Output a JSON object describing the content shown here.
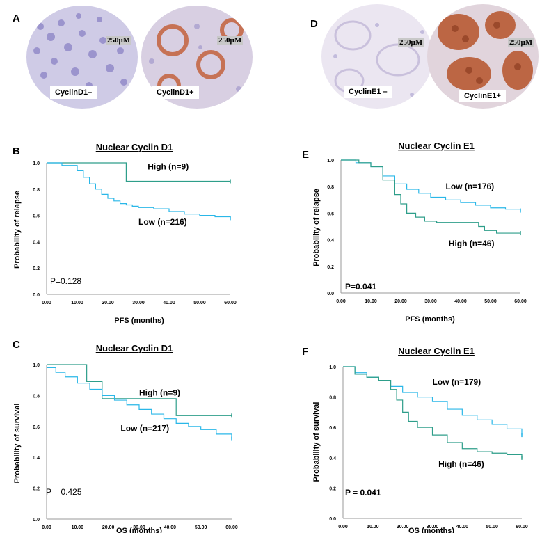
{
  "panels": {
    "A": {
      "letter": "A",
      "scale_bar": "250μM",
      "image_left_label": "CyclinD1–",
      "image_right_label": "CyclinD1+"
    },
    "D": {
      "letter": "D",
      "scale_bar": "250μM",
      "image_left_label": "CyclinE1 –",
      "image_right_label": "CyclinE1+"
    }
  },
  "colors": {
    "high_curve": "#2e9e8a",
    "low_curve": "#2ab7e8",
    "tissue_negative": "#b9b4d8",
    "tissue_positive": "#c4623c"
  },
  "chart_data": [
    {
      "panel": "B",
      "type": "line",
      "title": "Nuclear Cyclin D1",
      "xlabel": "PFS (months)",
      "ylabel": "Probability of relapse",
      "pvalue": "P=0.128",
      "xlim": [
        0,
        60
      ],
      "ylim": [
        0,
        1
      ],
      "xticks": [
        "0.00",
        "10.00",
        "20.00",
        "30.00",
        "40.00",
        "50.00",
        "60.00"
      ],
      "yticks": [
        "0.0",
        "0.2",
        "0.4",
        "0.6",
        "0.8",
        "1.0"
      ],
      "series": [
        {
          "name": "High  (n=9)",
          "color": "#2e9e8a",
          "x": [
            0,
            26,
            26,
            60
          ],
          "y": [
            1.0,
            1.0,
            0.86,
            0.86
          ]
        },
        {
          "name": "Low (n=216)",
          "color": "#2ab7e8",
          "x": [
            0,
            5,
            10,
            12,
            14,
            16,
            18,
            20,
            22,
            24,
            26,
            28,
            30,
            35,
            40,
            45,
            50,
            55,
            60
          ],
          "y": [
            1.0,
            0.98,
            0.94,
            0.89,
            0.84,
            0.8,
            0.76,
            0.73,
            0.71,
            0.69,
            0.68,
            0.67,
            0.66,
            0.65,
            0.63,
            0.61,
            0.6,
            0.59,
            0.58
          ]
        }
      ]
    },
    {
      "panel": "C",
      "type": "line",
      "title": "Nuclear Cyclin D1",
      "xlabel": "OS (months)",
      "ylabel": "Probability of survival",
      "pvalue": "P = 0.425",
      "xlim": [
        0,
        60
      ],
      "ylim": [
        0,
        1
      ],
      "xticks": [
        "0.00",
        "10.00",
        "20.00",
        "30.00",
        "40.00",
        "50.00",
        "60.00"
      ],
      "yticks": [
        "0.0",
        "0.2",
        "0.4",
        "0.6",
        "0.8",
        "1.0"
      ],
      "series": [
        {
          "name": "High (n=9)",
          "color": "#2e9e8a",
          "x": [
            0,
            13,
            13,
            18,
            18,
            42,
            42,
            60
          ],
          "y": [
            1.0,
            1.0,
            0.89,
            0.89,
            0.78,
            0.78,
            0.67,
            0.67
          ]
        },
        {
          "name": "Low (n=217)",
          "color": "#2ab7e8",
          "x": [
            0,
            3,
            6,
            10,
            14,
            18,
            22,
            26,
            30,
            34,
            38,
            42,
            46,
            50,
            55,
            60
          ],
          "y": [
            0.98,
            0.95,
            0.92,
            0.88,
            0.84,
            0.8,
            0.77,
            0.74,
            0.71,
            0.68,
            0.65,
            0.62,
            0.6,
            0.58,
            0.55,
            0.52
          ]
        }
      ]
    },
    {
      "panel": "E",
      "type": "line",
      "title": "Nuclear Cyclin E1",
      "xlabel": "PFS (months)",
      "ylabel": "Probability of relapse",
      "pvalue": "P=0.041",
      "xlim": [
        0,
        60
      ],
      "ylim": [
        0,
        1
      ],
      "xticks": [
        "0.00",
        "10.00",
        "20.00",
        "30.00",
        "40.00",
        "50.00",
        "60.00"
      ],
      "yticks": [
        "0.0",
        "0.2",
        "0.4",
        "0.6",
        "0.8",
        "1.0"
      ],
      "series": [
        {
          "name": "Low (n=176)",
          "color": "#2ab7e8",
          "x": [
            0,
            5,
            10,
            14,
            18,
            22,
            26,
            30,
            35,
            40,
            45,
            50,
            55,
            60
          ],
          "y": [
            1.0,
            0.98,
            0.95,
            0.88,
            0.82,
            0.78,
            0.75,
            0.72,
            0.7,
            0.68,
            0.66,
            0.64,
            0.63,
            0.62
          ]
        },
        {
          "name": "High (n=46)",
          "color": "#2e9e8a",
          "x": [
            0,
            6,
            10,
            14,
            18,
            20,
            22,
            25,
            28,
            32,
            40,
            46,
            48,
            52,
            60
          ],
          "y": [
            1.0,
            0.98,
            0.95,
            0.85,
            0.74,
            0.67,
            0.6,
            0.57,
            0.54,
            0.53,
            0.53,
            0.5,
            0.47,
            0.45,
            0.45
          ]
        }
      ]
    },
    {
      "panel": "F",
      "type": "line",
      "title": "Nuclear Cyclin E1",
      "xlabel": "OS (months)",
      "ylabel": "Probability of survival",
      "pvalue": "P = 0.041",
      "xlim": [
        0,
        60
      ],
      "ylim": [
        0,
        1
      ],
      "xticks": [
        "0.00",
        "10.00",
        "20.00",
        "30.00",
        "40.00",
        "50.00",
        "60.00"
      ],
      "yticks": [
        "0.0",
        "0.2",
        "0.4",
        "0.6",
        "0.8",
        "1.0"
      ],
      "series": [
        {
          "name": "Low (n=179)",
          "color": "#2ab7e8",
          "x": [
            0,
            4,
            8,
            12,
            16,
            20,
            25,
            30,
            35,
            40,
            45,
            50,
            55,
            60
          ],
          "y": [
            1.0,
            0.96,
            0.93,
            0.91,
            0.87,
            0.83,
            0.8,
            0.77,
            0.72,
            0.68,
            0.65,
            0.62,
            0.59,
            0.55
          ]
        },
        {
          "name": "High  (n=46)",
          "color": "#2e9e8a",
          "x": [
            0,
            4,
            8,
            12,
            16,
            18,
            20,
            22,
            25,
            30,
            35,
            40,
            45,
            50,
            55,
            60
          ],
          "y": [
            1.0,
            0.95,
            0.93,
            0.91,
            0.85,
            0.78,
            0.7,
            0.64,
            0.6,
            0.55,
            0.5,
            0.46,
            0.44,
            0.43,
            0.42,
            0.4
          ]
        }
      ]
    }
  ]
}
